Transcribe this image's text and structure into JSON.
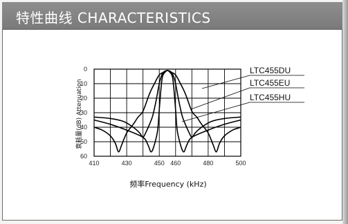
{
  "header": {
    "title": "特性曲线 CHARACTERISTICS"
  },
  "colors": {
    "header_bg": "#858585",
    "grid": "#000000",
    "curve": "#000000"
  },
  "chart_data": {
    "type": "line",
    "xlabel": "频率Frequency (kHz)",
    "ylabel": "衰耗量(dB) Attenuation",
    "xlim": [
      410,
      500
    ],
    "ylim": [
      0,
      60
    ],
    "y_inverted": true,
    "x_ticks": [
      "410",
      "430",
      "450",
      "460",
      "480",
      "500"
    ],
    "y_ticks": [
      "0",
      "10",
      "20",
      "30",
      "40",
      "50",
      "60"
    ],
    "series": [
      {
        "name": "LTC455DU",
        "points": [
          [
            410,
            40
          ],
          [
            415,
            42
          ],
          [
            420,
            46
          ],
          [
            423,
            51
          ],
          [
            425,
            57
          ],
          [
            427,
            52
          ],
          [
            430,
            44
          ],
          [
            434,
            38
          ],
          [
            437,
            33
          ],
          [
            440,
            29
          ],
          [
            444,
            17
          ],
          [
            447,
            10
          ],
          [
            450,
            4
          ],
          [
            453,
            2
          ],
          [
            455,
            1
          ],
          [
            457,
            2
          ],
          [
            460,
            4
          ],
          [
            463,
            10
          ],
          [
            466,
            17
          ],
          [
            470,
            29
          ],
          [
            473,
            33
          ],
          [
            476,
            38
          ],
          [
            480,
            44
          ],
          [
            483,
            52
          ],
          [
            485,
            57
          ],
          [
            487,
            51
          ],
          [
            490,
            46
          ],
          [
            495,
            42
          ],
          [
            500,
            40
          ]
        ]
      },
      {
        "name": "LTC455EU",
        "points": [
          [
            410,
            35
          ],
          [
            420,
            38
          ],
          [
            430,
            42
          ],
          [
            440,
            47
          ],
          [
            443,
            52
          ],
          [
            445,
            57
          ],
          [
            447,
            52
          ],
          [
            449,
            42
          ],
          [
            450,
            28
          ],
          [
            451,
            14
          ],
          [
            452,
            5
          ],
          [
            454,
            1.5
          ],
          [
            455,
            1
          ],
          [
            456,
            1.5
          ],
          [
            458,
            5
          ],
          [
            459,
            14
          ],
          [
            460,
            28
          ],
          [
            461,
            42
          ],
          [
            463,
            52
          ],
          [
            465,
            57
          ],
          [
            467,
            52
          ],
          [
            470,
            47
          ],
          [
            480,
            42
          ],
          [
            490,
            38
          ],
          [
            500,
            35
          ]
        ]
      },
      {
        "name": "LTC455HU",
        "points": [
          [
            410,
            33
          ],
          [
            420,
            34
          ],
          [
            428,
            36
          ],
          [
            434,
            40
          ],
          [
            438,
            44
          ],
          [
            440,
            47
          ],
          [
            442,
            43
          ],
          [
            444,
            38
          ],
          [
            446,
            32
          ],
          [
            448,
            22
          ],
          [
            450,
            10
          ],
          [
            452,
            3
          ],
          [
            455,
            1
          ],
          [
            458,
            3
          ],
          [
            460,
            10
          ],
          [
            462,
            22
          ],
          [
            464,
            32
          ],
          [
            466,
            38
          ],
          [
            468,
            43
          ],
          [
            470,
            47
          ],
          [
            472,
            44
          ],
          [
            476,
            40
          ],
          [
            482,
            36
          ],
          [
            490,
            34
          ],
          [
            500,
            33
          ]
        ]
      }
    ]
  }
}
